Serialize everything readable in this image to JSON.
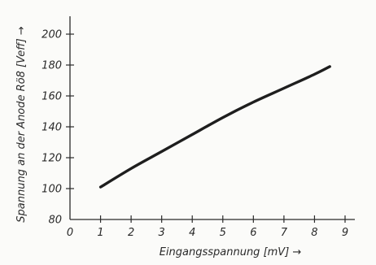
{
  "chart_data": {
    "type": "line",
    "title": "",
    "xlabel": "Eingangsspannung [mV] →",
    "ylabel": "Spannung an der Anode Rö8 [Veff] →",
    "xlim": [
      0,
      9
    ],
    "ylim": [
      80,
      200
    ],
    "x_ticks": [
      "0",
      "1",
      "2",
      "3",
      "4",
      "5",
      "6",
      "7",
      "8",
      "9"
    ],
    "y_ticks": [
      "80",
      "100",
      "120",
      "140",
      "160",
      "180",
      "200"
    ],
    "grid": false,
    "series": [
      {
        "x": [
          1,
          2,
          3,
          4,
          5,
          6,
          7,
          8,
          8.5
        ],
        "y": [
          101,
          113,
          124,
          135,
          146,
          156,
          165,
          174,
          179
        ]
      }
    ]
  }
}
